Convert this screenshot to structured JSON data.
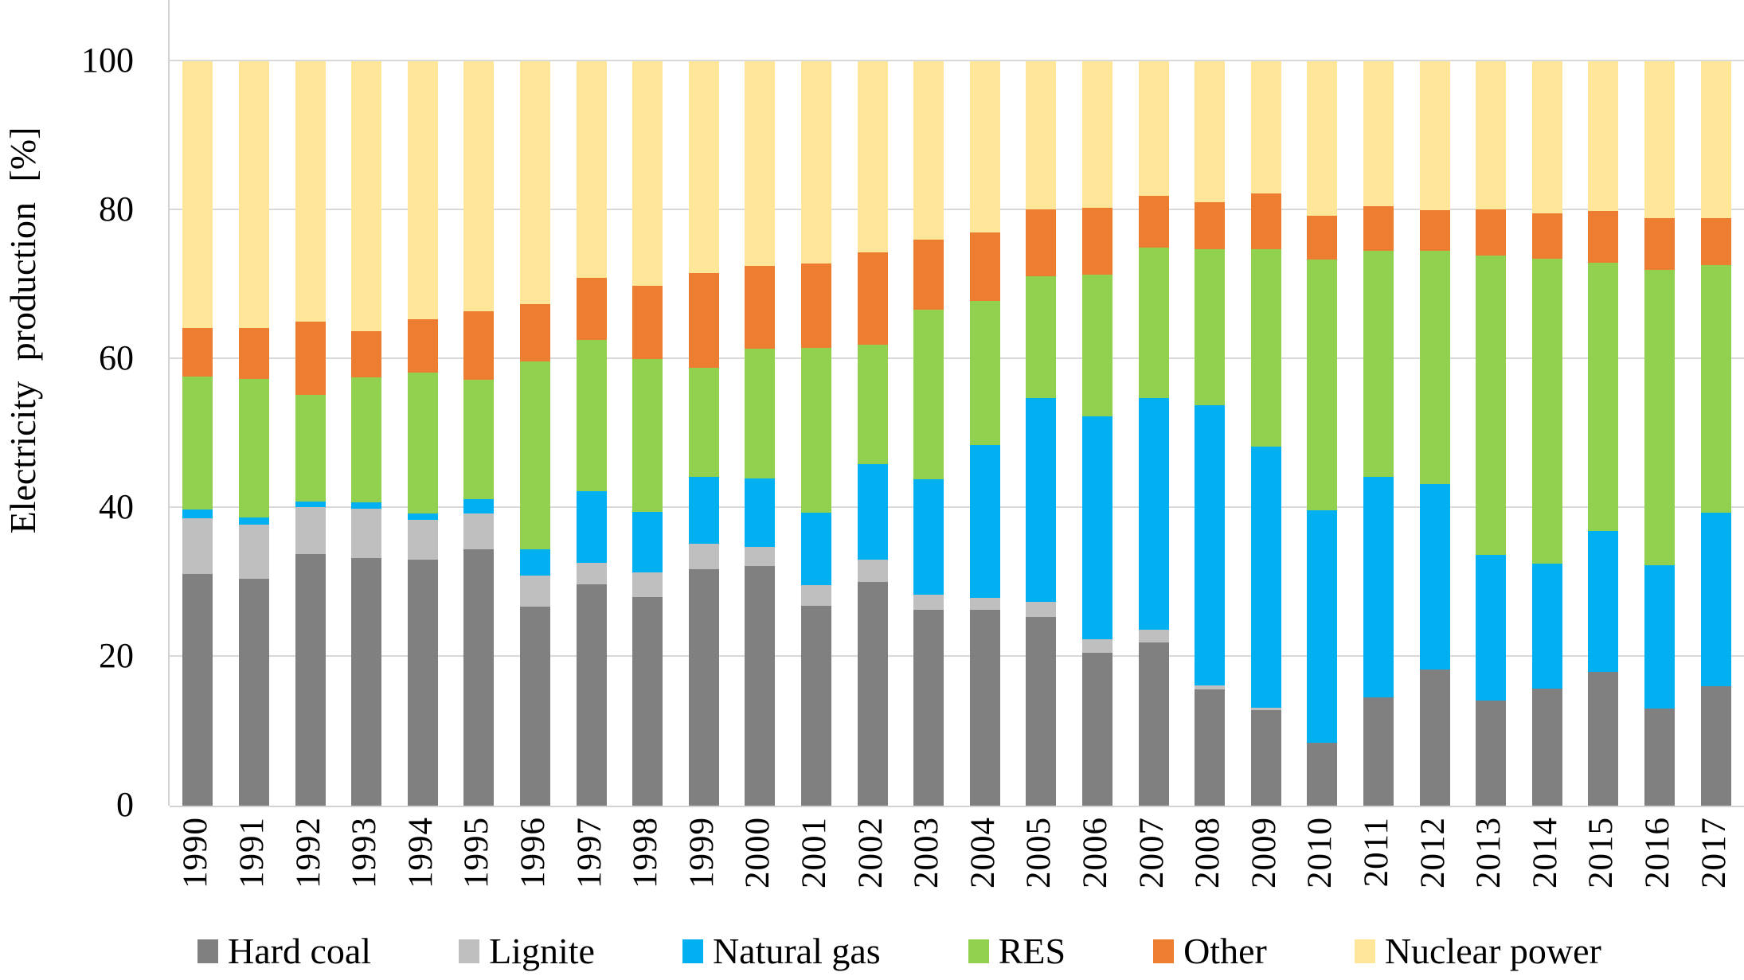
{
  "y_axis": {
    "title": "Electricity production [%]",
    "ticks": [
      0,
      20,
      40,
      60,
      80,
      100
    ]
  },
  "chart_data": {
    "type": "bar",
    "stacked": true,
    "title": "",
    "xlabel": "",
    "ylabel": "Electricity production [%]",
    "ylim": [
      0,
      100
    ],
    "yticks": [
      0,
      20,
      40,
      60,
      80,
      100
    ],
    "grid": true,
    "legend_position": "bottom",
    "categories": [
      "1990",
      "1991",
      "1992",
      "1993",
      "1994",
      "1995",
      "1996",
      "1997",
      "1998",
      "1999",
      "2000",
      "2001",
      "2002",
      "2003",
      "2004",
      "2005",
      "2006",
      "2007",
      "2008",
      "2009",
      "2010",
      "2011",
      "2012",
      "2013",
      "2014",
      "2015",
      "2016",
      "2017"
    ],
    "series": [
      {
        "name": "Hard coal",
        "color": "#808080",
        "values": [
          31.1,
          30.5,
          33.8,
          33.3,
          33.0,
          34.4,
          26.7,
          29.7,
          28.0,
          31.8,
          32.2,
          26.9,
          30.1,
          26.3,
          26.3,
          25.4,
          20.5,
          21.9,
          15.6,
          12.8,
          8.4,
          14.6,
          18.3,
          14.1,
          15.7,
          18.0,
          13.0,
          16.0
        ]
      },
      {
        "name": "Lignite",
        "color": "#bfbfbf",
        "values": [
          7.5,
          7.3,
          6.3,
          6.6,
          5.4,
          4.9,
          4.2,
          2.9,
          3.3,
          3.4,
          2.6,
          2.7,
          2.9,
          2.0,
          1.6,
          2.0,
          1.9,
          1.7,
          0.5,
          0.4,
          0,
          0,
          0,
          0,
          0,
          0,
          0,
          0
        ]
      },
      {
        "name": "Natural gas",
        "color": "#00b0f0",
        "values": [
          1.2,
          0.9,
          0.8,
          0.8,
          0.9,
          1.9,
          3.5,
          9.7,
          8.2,
          9.0,
          9.2,
          9.8,
          12.9,
          15.6,
          20.6,
          27.4,
          29.9,
          31.2,
          37.7,
          35.0,
          31.3,
          29.6,
          24.9,
          19.6,
          16.8,
          18.9,
          19.3,
          23.4
        ]
      },
      {
        "name": "RES",
        "color": "#92d050",
        "values": [
          17.8,
          18.6,
          14.3,
          16.8,
          18.9,
          16.0,
          25.3,
          20.3,
          20.5,
          14.6,
          17.4,
          22.1,
          16.0,
          22.7,
          19.3,
          16.3,
          19.0,
          20.2,
          21.0,
          26.6,
          33.7,
          30.3,
          31.4,
          40.2,
          41.0,
          36.0,
          39.7,
          33.2
        ]
      },
      {
        "name": "Other",
        "color": "#ed7d31",
        "values": [
          6.6,
          6.9,
          9.8,
          6.3,
          7.2,
          9.2,
          7.7,
          8.3,
          9.8,
          12.8,
          11.1,
          11.3,
          12.4,
          9.4,
          9.2,
          9.0,
          9.0,
          6.9,
          6.3,
          7.4,
          5.9,
          6.0,
          5.4,
          6.2,
          6.1,
          7.0,
          6.9,
          6.3
        ]
      },
      {
        "name": "Nuclear power",
        "color": "#ffe699",
        "values": [
          35.8,
          35.8,
          35.0,
          36.2,
          34.6,
          33.6,
          32.6,
          29.1,
          30.2,
          28.4,
          27.5,
          27.2,
          25.7,
          24.0,
          23.0,
          19.9,
          19.7,
          18.1,
          18.9,
          17.8,
          20.7,
          19.5,
          20.0,
          19.9,
          20.4,
          20.1,
          21.1,
          21.1
        ]
      }
    ]
  },
  "colors": {
    "gridline": "#d9d9d9",
    "axis_line": "#d2d2d2",
    "background": "#ffffff"
  }
}
